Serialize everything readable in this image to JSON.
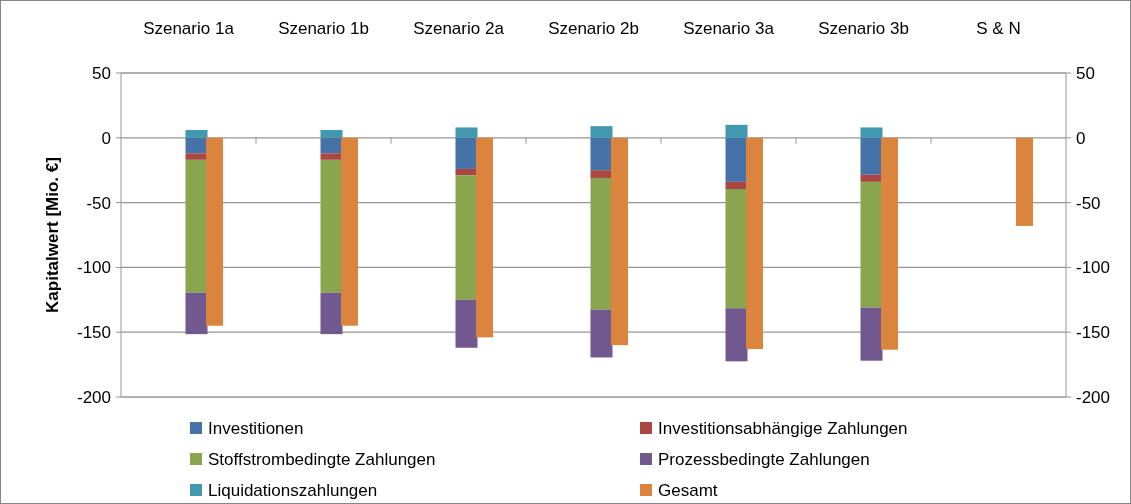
{
  "chart_data": {
    "type": "bar",
    "stacked": true,
    "ylabel": "Kapitalwert [Mio. €]",
    "categories": [
      "Szenario 1a",
      "Szenario 1b",
      "Szenario 2a",
      "Szenario 2b",
      "Szenario 3a",
      "Szenario 3b",
      "S & N"
    ],
    "series": [
      {
        "name": "Investitionen",
        "color": "#4572a7",
        "values": [
          -12,
          -12,
          -24,
          -25,
          -34,
          -28.5,
          null
        ]
      },
      {
        "name": "Investitionsabhängige Zahlungen",
        "color": "#aa4643",
        "values": [
          -5,
          -5,
          -5,
          -6,
          -5.5,
          -5.5,
          null
        ]
      },
      {
        "name": "Stoffstrombedingte Zahlungen",
        "color": "#89a54e",
        "values": [
          -102.5,
          -102.5,
          -96,
          -101.5,
          -92,
          -97,
          null
        ]
      },
      {
        "name": "Prozessbedingte Zahlungen",
        "color": "#71588f",
        "values": [
          -32,
          -32,
          -37,
          -37,
          -41,
          -41,
          null
        ]
      },
      {
        "name": "Liquidationszahlungen",
        "color": "#4198af",
        "values": [
          6,
          6,
          8,
          9,
          10,
          8,
          null
        ]
      },
      {
        "name": "Gesamt",
        "color": "#db843d",
        "axis": "y2",
        "values": [
          -145,
          -145,
          -154,
          -160,
          -163,
          -163.5,
          -68
        ]
      }
    ],
    "ylim": [
      -200,
      50
    ],
    "yticks": [
      -200,
      -150,
      -100,
      -50,
      0,
      50
    ],
    "y2lim": [
      -200,
      50
    ],
    "y2ticks": [
      -200,
      -150,
      -100,
      -50,
      0,
      50
    ],
    "grid": "y",
    "legend": "bottom"
  }
}
